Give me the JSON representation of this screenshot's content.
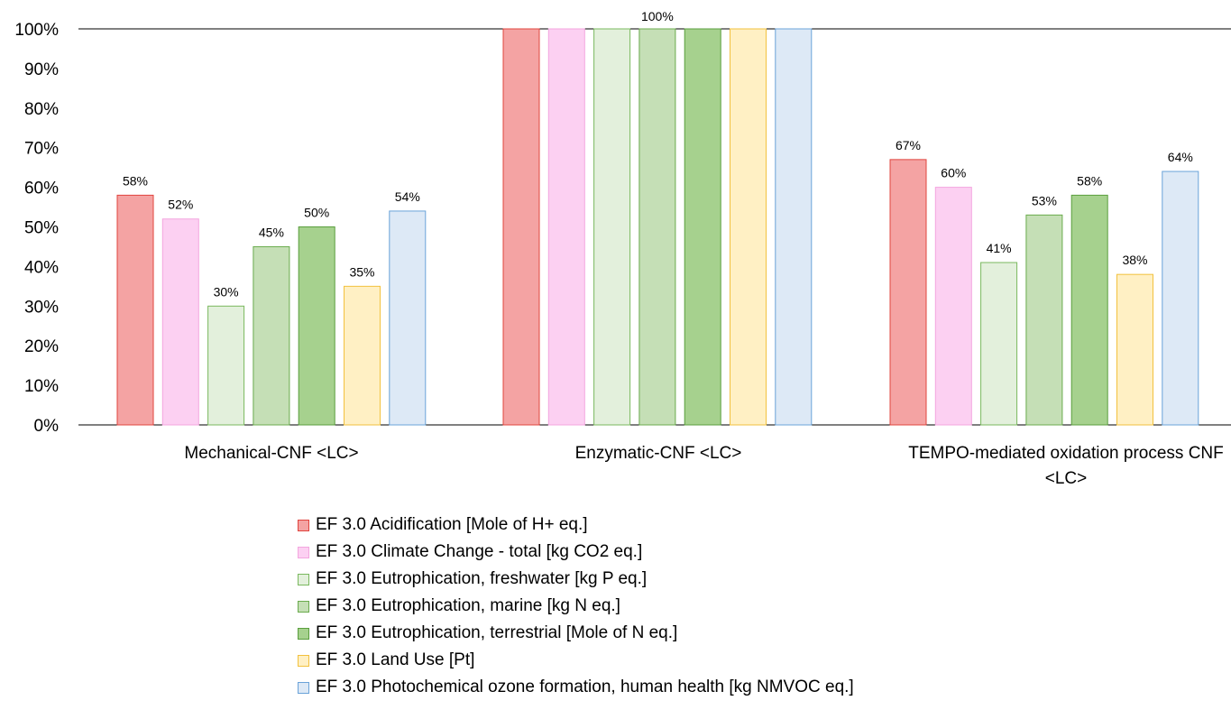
{
  "chart_data": {
    "type": "bar",
    "title": "",
    "xlabel": "",
    "ylabel": "",
    "ylim": [
      0,
      100
    ],
    "y_ticks": [
      "0%",
      "10%",
      "20%",
      "30%",
      "40%",
      "50%",
      "60%",
      "70%",
      "80%",
      "90%",
      "100%"
    ],
    "grid": false,
    "legend_position": "bottom",
    "categories": [
      [
        "Mechanical-CNF <LC>"
      ],
      [
        "Enzymatic-CNF <LC>"
      ],
      [
        "TEMPO-mediated oxidation process CNF",
        "<LC>"
      ]
    ],
    "series": [
      {
        "name": "EF 3.0 Acidification [Mole of H+ eq.]",
        "values": [
          58,
          100,
          67
        ],
        "labels": [
          "58%",
          "",
          "67%"
        ],
        "fill": "#f4a3a3",
        "stroke": "#e0443e"
      },
      {
        "name": "EF 3.0 Climate Change - total [kg CO2 eq.]",
        "values": [
          52,
          100,
          60
        ],
        "labels": [
          "52%",
          "",
          "60%"
        ],
        "fill": "#fcd0f2",
        "stroke": "#f3a6df"
      },
      {
        "name": "EF 3.0 Eutrophication, freshwater [kg P eq.]",
        "values": [
          30,
          100,
          41
        ],
        "labels": [
          "30%",
          "",
          "41%"
        ],
        "fill": "#e3f0dc",
        "stroke": "#7ab85e"
      },
      {
        "name": "EF 3.0 Eutrophication, marine [kg N eq.]",
        "values": [
          45,
          100,
          53
        ],
        "labels": [
          "45%",
          "",
          "53%"
        ],
        "fill": "#c5dfb6",
        "stroke": "#6aab4d"
      },
      {
        "name": "EF 3.0 Eutrophication, terrestrial [Mole of N eq.]",
        "values": [
          50,
          100,
          58
        ],
        "labels": [
          "50%",
          "",
          "58%"
        ],
        "fill": "#a6d18e",
        "stroke": "#5a9e3d"
      },
      {
        "name": "EF 3.0 Land Use [Pt]",
        "values": [
          35,
          100,
          38
        ],
        "labels": [
          "35%",
          "",
          "38%"
        ],
        "fill": "#fff0c4",
        "stroke": "#f2c13e"
      },
      {
        "name": "EF 3.0 Photochemical ozone formation, human health [kg NMVOC eq.]",
        "values": [
          54,
          100,
          64
        ],
        "labels": [
          "54%",
          "",
          "64%"
        ],
        "fill": "#dde9f6",
        "stroke": "#6aa3d9"
      }
    ],
    "group_top_label": [
      "",
      "100%",
      ""
    ]
  }
}
